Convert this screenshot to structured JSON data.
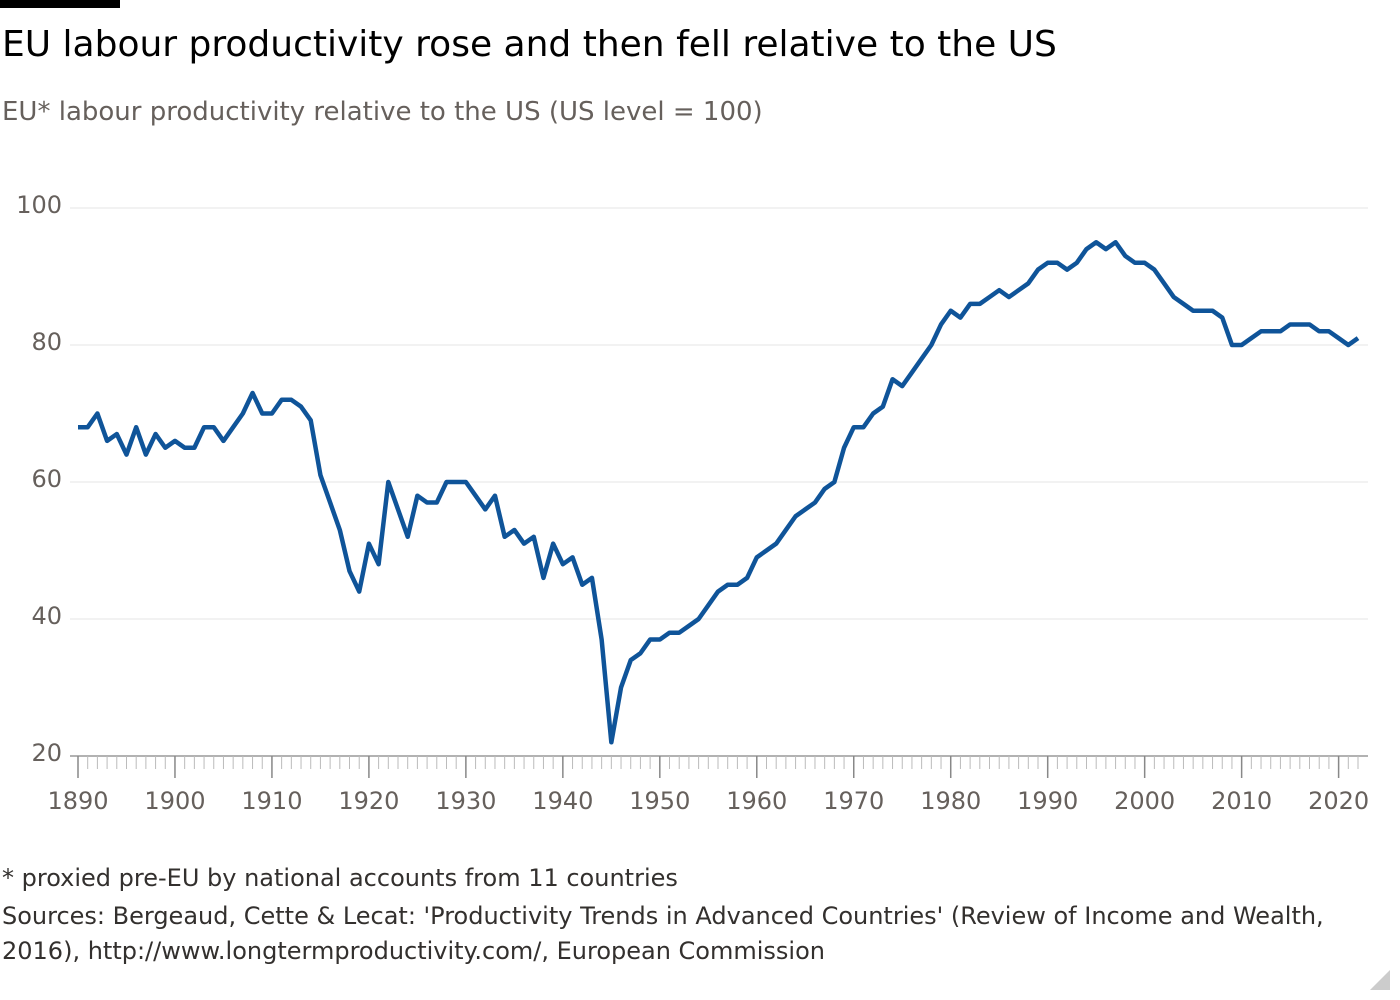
{
  "chart_data": {
    "type": "line",
    "title": "EU labour productivity rose and then fell relative to the US",
    "subtitle": "EU* labour productivity relative to the US (US level = 100)",
    "note": "* proxied pre-EU by national accounts from 11 countries",
    "source": "Sources: Bergeaud, Cette & Lecat: 'Productivity Trends in Advanced Countries' (Review of Income and Wealth, 2016), http://www.longtermproductivity.com/, European Commission",
    "x": [
      1890,
      1891,
      1892,
      1893,
      1894,
      1895,
      1896,
      1897,
      1898,
      1899,
      1900,
      1901,
      1902,
      1903,
      1904,
      1905,
      1906,
      1907,
      1908,
      1909,
      1910,
      1911,
      1912,
      1913,
      1914,
      1915,
      1916,
      1917,
      1918,
      1919,
      1920,
      1921,
      1922,
      1923,
      1924,
      1925,
      1926,
      1927,
      1928,
      1929,
      1930,
      1931,
      1932,
      1933,
      1934,
      1935,
      1936,
      1937,
      1938,
      1939,
      1940,
      1941,
      1942,
      1943,
      1944,
      1945,
      1946,
      1947,
      1948,
      1949,
      1950,
      1951,
      1952,
      1953,
      1954,
      1955,
      1956,
      1957,
      1958,
      1959,
      1960,
      1961,
      1962,
      1963,
      1964,
      1965,
      1966,
      1967,
      1968,
      1969,
      1970,
      1971,
      1972,
      1973,
      1974,
      1975,
      1976,
      1977,
      1978,
      1979,
      1980,
      1981,
      1982,
      1983,
      1984,
      1985,
      1986,
      1987,
      1988,
      1989,
      1990,
      1991,
      1992,
      1993,
      1994,
      1995,
      1996,
      1997,
      1998,
      1999,
      2000,
      2001,
      2002,
      2003,
      2004,
      2005,
      2006,
      2007,
      2008,
      2009,
      2010,
      2011,
      2012,
      2013,
      2014,
      2015,
      2016,
      2017,
      2018,
      2019,
      2020,
      2021,
      2022
    ],
    "series": [
      {
        "name": "EU",
        "color": "#0f5499",
        "values": [
          68,
          68,
          70,
          66,
          67,
          64,
          68,
          64,
          67,
          65,
          66,
          65,
          65,
          68,
          68,
          66,
          68,
          70,
          73,
          70,
          70,
          72,
          72,
          71,
          69,
          61,
          57,
          53,
          47,
          44,
          51,
          48,
          60,
          56,
          52,
          58,
          57,
          57,
          60,
          60,
          60,
          58,
          56,
          58,
          52,
          53,
          51,
          52,
          46,
          51,
          48,
          49,
          45,
          46,
          37,
          22,
          30,
          34,
          35,
          37,
          37,
          38,
          38,
          39,
          40,
          42,
          44,
          45,
          45,
          46,
          49,
          50,
          51,
          53,
          55,
          56,
          57,
          59,
          60,
          65,
          68,
          68,
          70,
          71,
          75,
          74,
          76,
          78,
          80,
          83,
          85,
          84,
          86,
          86,
          87,
          88,
          87,
          88,
          89,
          91,
          92,
          92,
          91,
          92,
          94,
          95,
          94,
          95,
          93,
          92,
          92,
          91,
          89,
          87,
          86,
          85,
          85,
          85,
          84,
          80,
          80,
          81,
          82,
          82,
          82,
          83,
          83,
          83,
          82,
          82,
          81,
          80,
          81
        ]
      }
    ],
    "xlim": [
      1890,
      2022
    ],
    "xticks": [
      1890,
      1900,
      1910,
      1920,
      1930,
      1940,
      1950,
      1960,
      1970,
      1980,
      1990,
      2000,
      2010,
      2020
    ],
    "ylim": [
      20,
      100
    ],
    "yticks": [
      20,
      40,
      60,
      80,
      100
    ],
    "grid": true
  }
}
